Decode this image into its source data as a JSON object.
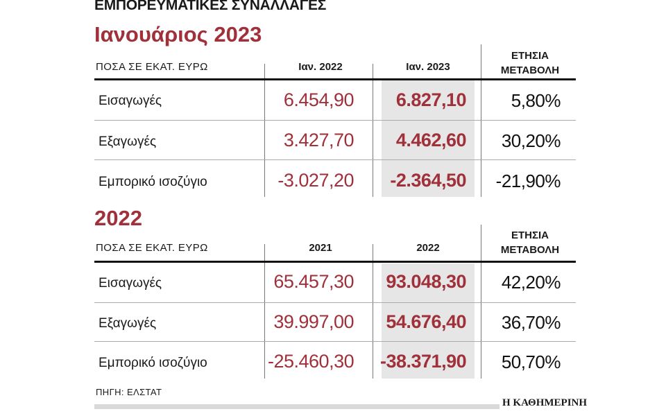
{
  "title": "ΕΜΠΟΡΕΥΜΑΤΙΚΕΣ ΣΥΝΑΛΛΑΓΕΣ",
  "source": "ΠΗΓΗ: ΕΛΣΤΑΤ",
  "logo": "Η ΚΑΘΗΜΕΡΙΝΗ",
  "colors": {
    "accent": "#a0303a",
    "shade": "#e6e6e6"
  },
  "chart_data": [
    {
      "type": "table",
      "title": "Ιανουάριος 2023",
      "unit_label": "ΠΟΣΑ ΣΕ ΕΚΑΤ. ΕΥΡΩ",
      "columns": [
        "Ιαν. 2022",
        "Ιαν. 2023"
      ],
      "change_header": [
        "ΕΤΗΣΙΑ",
        "ΜΕΤΑΒΟΛΗ"
      ],
      "rows": [
        {
          "label": "Εισαγωγές",
          "prev": "6.454,90",
          "cur": "6.827,10",
          "change": "5,80%"
        },
        {
          "label": "Εξαγωγές",
          "prev": "3.427,70",
          "cur": "4.462,60",
          "change": "30,20%"
        },
        {
          "label": "Εμπορικό ισοζύγιο",
          "prev": "-3.027,20",
          "cur": "-2.364,50",
          "change": "-21,90%"
        }
      ]
    },
    {
      "type": "table",
      "title": "2022",
      "unit_label": "ΠΟΣΑ ΣΕ ΕΚΑΤ. ΕΥΡΩ",
      "columns": [
        "2021",
        "2022"
      ],
      "change_header": [
        "ΕΤΗΣΙΑ",
        "ΜΕΤΑΒΟΛΗ"
      ],
      "rows": [
        {
          "label": "Εισαγωγές",
          "prev": "65.457,30",
          "cur": "93.048,30",
          "change": "42,20%"
        },
        {
          "label": "Εξαγωγές",
          "prev": "39.997,00",
          "cur": "54.676,40",
          "change": "36,70%"
        },
        {
          "label": "Εμπορικό ισοζύγιο",
          "prev": "-25.460,30",
          "cur": "-38.371,90",
          "change": "50,70%"
        }
      ]
    }
  ]
}
